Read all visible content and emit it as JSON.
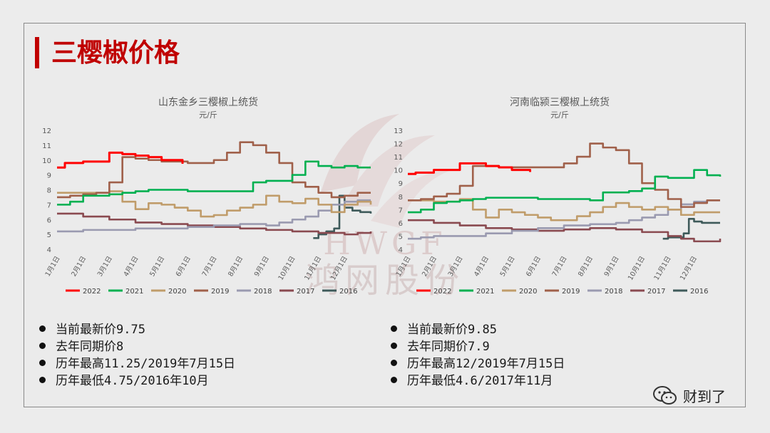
{
  "slide_title": "三樱椒价格",
  "watermark": {
    "en": "HWGF",
    "cn": "鸿网股份"
  },
  "footer": {
    "label": "财到了"
  },
  "legend_colors": {
    "2022": "#ff0000",
    "2021": "#00b050",
    "2020": "#c09c6a",
    "2019": "#a0604a",
    "2018": "#9a9ab0",
    "2017": "#8a4a50",
    "2016": "#3e5a5a"
  },
  "chart_data": [
    {
      "type": "line",
      "title": "山东金乡三樱椒上统货",
      "ylabel": "元/斤",
      "ylim": [
        4,
        12
      ],
      "yticks": [
        "4",
        "5",
        "6",
        "7",
        "8",
        "9",
        "10",
        "11",
        "12"
      ],
      "xticks": [
        "1月1日",
        "2月1日",
        "3月1日",
        "4月1日",
        "5月1日",
        "6月1日",
        "7月1日",
        "8月1日",
        "9月1日",
        "10月1日",
        "11月1日",
        "12月1日"
      ],
      "series": [
        {
          "name": "2022",
          "color": "#ff0000",
          "x": [
            0,
            0.3,
            1.0,
            1.5,
            2.0,
            2.5,
            3.0,
            3.5,
            4.0,
            4.5,
            4.8
          ],
          "y": [
            9.5,
            9.8,
            9.9,
            9.9,
            10.5,
            10.4,
            10.3,
            10.2,
            10.0,
            10.0,
            9.75
          ]
        },
        {
          "name": "2021",
          "color": "#00b050",
          "x": [
            0,
            0.5,
            1.0,
            1.5,
            2.0,
            2.5,
            3.0,
            3.5,
            4.0,
            5.0,
            6.0,
            7.0,
            7.5,
            8.0,
            8.5,
            9.0,
            9.5,
            10.0,
            10.5,
            11.0,
            11.5,
            12.0
          ],
          "y": [
            7.0,
            7.2,
            7.6,
            7.6,
            7.7,
            7.8,
            7.9,
            8.0,
            8.0,
            7.9,
            7.9,
            7.9,
            8.5,
            8.6,
            8.6,
            9.0,
            9.9,
            9.6,
            9.5,
            9.6,
            9.5,
            9.5
          ]
        },
        {
          "name": "2020",
          "color": "#c09c6a",
          "x": [
            0,
            0.5,
            1.0,
            1.5,
            2.0,
            2.5,
            3.0,
            3.5,
            4.0,
            4.5,
            5.0,
            5.5,
            6.0,
            6.5,
            7.0,
            7.5,
            8.0,
            8.5,
            9.0,
            9.5,
            10.0,
            10.5,
            11.0,
            11.5,
            12.0
          ],
          "y": [
            7.8,
            7.8,
            7.8,
            7.8,
            7.9,
            7.2,
            6.7,
            7.1,
            7.0,
            6.8,
            6.6,
            6.2,
            6.3,
            6.6,
            6.8,
            7.0,
            7.6,
            7.2,
            7.1,
            7.4,
            7.0,
            6.5,
            7.0,
            7.2,
            7.0
          ]
        },
        {
          "name": "2019",
          "color": "#a0604a",
          "x": [
            0,
            0.5,
            1.0,
            1.5,
            2.0,
            2.5,
            3.0,
            3.5,
            4.0,
            5.0,
            6.0,
            6.5,
            7.0,
            7.5,
            8.0,
            8.5,
            9.0,
            9.5,
            10.0,
            10.5,
            11.0,
            11.5,
            12.0
          ],
          "y": [
            7.5,
            7.6,
            7.7,
            7.8,
            8.5,
            10.2,
            10.1,
            10.0,
            9.9,
            9.8,
            10.0,
            10.5,
            11.2,
            11.0,
            10.5,
            9.8,
            8.5,
            8.2,
            7.8,
            7.5,
            7.6,
            7.8,
            7.8
          ]
        },
        {
          "name": "2018",
          "color": "#9a9ab0",
          "x": [
            0,
            0.5,
            1.0,
            2.0,
            3.0,
            4.0,
            5.0,
            6.0,
            7.0,
            8.0,
            8.5,
            9.0,
            9.5,
            10.0,
            10.5,
            11.0,
            11.5,
            12.0
          ],
          "y": [
            5.2,
            5.2,
            5.3,
            5.3,
            5.4,
            5.4,
            5.5,
            5.6,
            5.7,
            5.6,
            5.8,
            6.0,
            6.2,
            6.6,
            7.0,
            7.2,
            7.3,
            7.3
          ]
        },
        {
          "name": "2017",
          "color": "#8a4a50",
          "x": [
            0,
            1.0,
            2.0,
            3.0,
            4.0,
            5.0,
            6.0,
            7.0,
            8.0,
            9.0,
            10.0,
            11.0,
            11.5,
            12.0
          ],
          "y": [
            6.4,
            6.2,
            6.0,
            5.8,
            5.7,
            5.6,
            5.5,
            5.4,
            5.3,
            5.2,
            5.1,
            5.0,
            5.1,
            5.2
          ]
        },
        {
          "name": "2016",
          "color": "#3e5a5a",
          "x": [
            9.8,
            10.0,
            10.3,
            10.6,
            10.8,
            11.0,
            11.3,
            11.6,
            12.0
          ],
          "y": [
            4.75,
            5.0,
            5.2,
            5.4,
            7.6,
            6.8,
            6.6,
            6.5,
            6.4
          ]
        }
      ],
      "bullets": [
        "当前最新价9.75",
        "去年同期价8",
        "历年最高11.25/2019年7月15日",
        "历年最低4.75/2016年10月"
      ]
    },
    {
      "type": "line",
      "title": "河南临颍三樱椒上统货",
      "ylabel": "元/斤",
      "ylim": [
        4,
        13
      ],
      "yticks": [
        "4",
        "5",
        "6",
        "7",
        "8",
        "9",
        "10",
        "11",
        "12",
        "13"
      ],
      "xticks": [
        "1月1日",
        "2月1日",
        "3月1日",
        "4月1日",
        "5月1日",
        "6月1日",
        "7月1日",
        "8月1日",
        "9月1日",
        "10月1日",
        "11月1日",
        "12月1日"
      ],
      "series": [
        {
          "name": "2022",
          "color": "#ff0000",
          "x": [
            0,
            0.3,
            1.0,
            1.5,
            2.0,
            2.5,
            3.0,
            3.5,
            4.0,
            4.5,
            4.7
          ],
          "y": [
            9.7,
            9.8,
            10.0,
            10.0,
            10.5,
            10.5,
            10.3,
            10.2,
            10.0,
            10.0,
            9.85
          ]
        },
        {
          "name": "2021",
          "color": "#00b050",
          "x": [
            0,
            0.5,
            1.0,
            1.5,
            2.0,
            2.5,
            3.0,
            3.5,
            4.0,
            5.0,
            6.0,
            7.0,
            7.5,
            8.0,
            8.5,
            9.0,
            9.5,
            10.0,
            10.5,
            11.0,
            11.5,
            12.0
          ],
          "y": [
            6.8,
            7.0,
            7.5,
            7.6,
            7.7,
            7.8,
            7.9,
            7.9,
            7.9,
            7.8,
            7.8,
            7.7,
            8.3,
            8.3,
            8.4,
            8.6,
            9.5,
            9.4,
            9.4,
            10.0,
            9.6,
            9.5
          ]
        },
        {
          "name": "2020",
          "color": "#c09c6a",
          "x": [
            0,
            0.5,
            1.0,
            1.5,
            2.0,
            2.5,
            3.0,
            3.5,
            4.0,
            4.5,
            5.0,
            5.5,
            6.0,
            6.5,
            7.0,
            7.5,
            8.0,
            8.5,
            9.0,
            9.5,
            10.0,
            10.5,
            11.0,
            11.5,
            12.0
          ],
          "y": [
            7.7,
            7.7,
            7.6,
            7.6,
            7.8,
            7.0,
            6.4,
            7.0,
            6.8,
            6.6,
            6.4,
            6.2,
            6.2,
            6.5,
            6.8,
            7.2,
            7.5,
            7.2,
            7.0,
            7.2,
            7.0,
            6.6,
            6.8,
            6.8,
            6.8
          ]
        },
        {
          "name": "2019",
          "color": "#a0604a",
          "x": [
            0,
            0.5,
            1.0,
            1.5,
            2.0,
            2.5,
            3.0,
            3.5,
            4.0,
            5.0,
            6.0,
            6.5,
            7.0,
            7.5,
            8.0,
            8.5,
            9.0,
            9.5,
            10.0,
            10.5,
            11.0,
            11.5,
            12.0
          ],
          "y": [
            7.7,
            7.8,
            8.0,
            8.2,
            8.8,
            10.3,
            10.3,
            10.2,
            10.2,
            10.2,
            10.5,
            11.0,
            12.0,
            11.7,
            11.5,
            10.5,
            9.0,
            8.5,
            7.8,
            7.2,
            7.5,
            7.7,
            7.7
          ]
        },
        {
          "name": "2018",
          "color": "#9a9ab0",
          "x": [
            0,
            0.5,
            1.0,
            2.0,
            3.0,
            4.0,
            5.0,
            6.0,
            7.0,
            8.0,
            8.5,
            9.0,
            9.5,
            10.0,
            10.5,
            11.0,
            11.5,
            12.0
          ],
          "y": [
            4.8,
            4.9,
            5.0,
            5.0,
            5.2,
            5.4,
            5.6,
            5.8,
            5.9,
            6.0,
            6.2,
            6.4,
            6.6,
            7.0,
            7.4,
            7.6,
            7.7,
            7.7
          ]
        },
        {
          "name": "2017",
          "color": "#8a4a50",
          "x": [
            0,
            1.0,
            2.0,
            3.0,
            4.0,
            5.0,
            6.0,
            7.0,
            8.0,
            9.0,
            10.0,
            10.5,
            11.0,
            11.5,
            12.0
          ],
          "y": [
            6.2,
            6.0,
            5.8,
            5.6,
            5.5,
            5.4,
            5.5,
            5.6,
            5.5,
            5.3,
            5.0,
            4.8,
            4.6,
            4.6,
            4.8
          ]
        },
        {
          "name": "2016",
          "color": "#3e5a5a",
          "x": [
            9.8,
            10.0,
            10.3,
            10.6,
            10.8,
            11.0,
            11.3,
            11.6,
            12.0
          ],
          "y": [
            4.8,
            4.9,
            4.9,
            5.2,
            6.3,
            6.1,
            6.0,
            6.0,
            6.0
          ]
        }
      ],
      "bullets": [
        "当前最新价9.85",
        "去年同期价7.9",
        "历年最高12/2019年7月15日",
        "历年最低4.6/2017年11月"
      ]
    }
  ]
}
